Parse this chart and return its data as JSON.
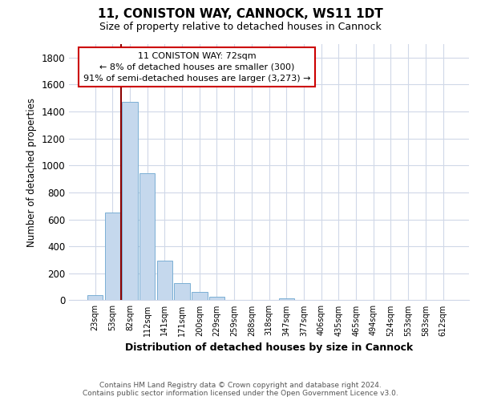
{
  "title": "11, CONISTON WAY, CANNOCK, WS11 1DT",
  "subtitle": "Size of property relative to detached houses in Cannock",
  "xlabel": "Distribution of detached houses by size in Cannock",
  "ylabel": "Number of detached properties",
  "bar_labels": [
    "23sqm",
    "53sqm",
    "82sqm",
    "112sqm",
    "141sqm",
    "171sqm",
    "200sqm",
    "229sqm",
    "259sqm",
    "288sqm",
    "318sqm",
    "347sqm",
    "377sqm",
    "406sqm",
    "435sqm",
    "465sqm",
    "494sqm",
    "524sqm",
    "553sqm",
    "583sqm",
    "612sqm"
  ],
  "bar_values": [
    40,
    650,
    1470,
    940,
    295,
    130,
    65,
    25,
    5,
    0,
    0,
    15,
    0,
    0,
    0,
    0,
    0,
    0,
    0,
    0,
    0
  ],
  "bar_color": "#c5d8ed",
  "bar_edge_color": "#7bafd4",
  "vline_color": "#8b0000",
  "annotation_title": "11 CONISTON WAY: 72sqm",
  "annotation_line1": "← 8% of detached houses are smaller (300)",
  "annotation_line2": "91% of semi-detached houses are larger (3,273) →",
  "annotation_box_color": "#ffffff",
  "annotation_box_edge": "#cc0000",
  "ylim": [
    0,
    1900
  ],
  "yticks": [
    0,
    200,
    400,
    600,
    800,
    1000,
    1200,
    1400,
    1600,
    1800
  ],
  "footer_line1": "Contains HM Land Registry data © Crown copyright and database right 2024.",
  "footer_line2": "Contains public sector information licensed under the Open Government Licence v3.0.",
  "background_color": "#ffffff",
  "grid_color": "#d0d8e8"
}
